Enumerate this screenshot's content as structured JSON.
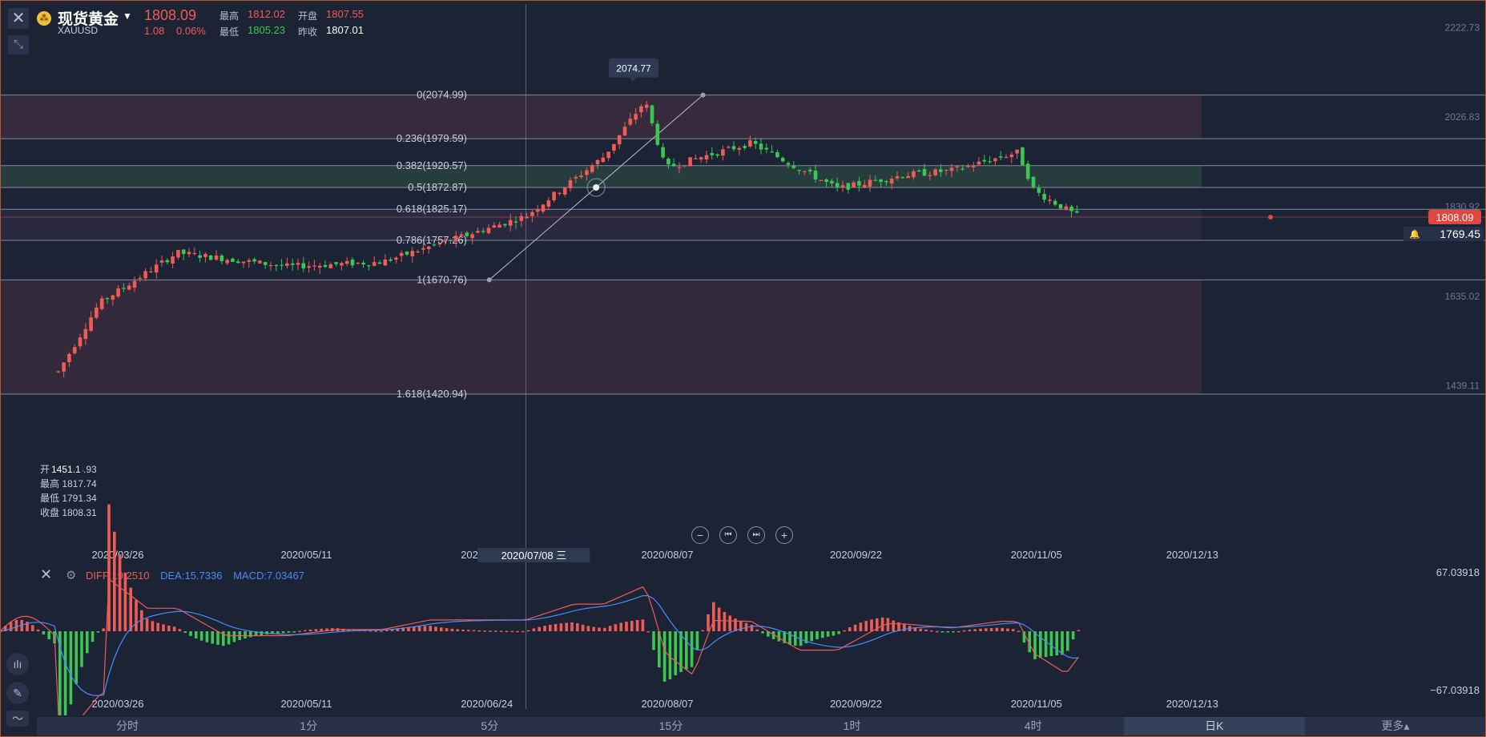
{
  "header": {
    "instrument_name": "现货黄金",
    "instrument_code": "XAUUSD",
    "last_price": "1808.09",
    "change": "1.08",
    "change_pct": "0.06%",
    "high_label": "最高",
    "high_value": "1812.02",
    "open_label": "开盘",
    "open_value": "1807.55",
    "low_label": "最低",
    "low_value": "1805.23",
    "prev_close_label": "昨收",
    "prev_close_value": "1807.01"
  },
  "ohlc_tooltip": {
    "low_marker": "1451.1",
    "open_line": "开盘 1793.93",
    "high_line": "最高 1817.74",
    "low_line": "最低 1791.34",
    "close_line": "收盘 1808.31"
  },
  "price_axis": [
    "2222.73",
    "2026.83",
    "1830.92",
    "1635.02",
    "1439.11"
  ],
  "current_price_tag": "1808.09",
  "alert_price_tag": "1769.45",
  "peak_tooltip": "2074.77",
  "fib_levels": [
    {
      "label": "0(2074.99)",
      "price": 2074.99
    },
    {
      "label": "0.236(1979.59)",
      "price": 1979.59
    },
    {
      "label": "0.382(1920.57)",
      "price": 1920.57
    },
    {
      "label": "0.5(1872.87)",
      "price": 1872.87
    },
    {
      "label": "0.618(1825.17)",
      "price": 1825.17
    },
    {
      "label": "0.786(1757.26)",
      "price": 1757.26
    },
    {
      "label": "1(1670.76)",
      "price": 1670.76
    },
    {
      "label": "1.618(1420.94)",
      "price": 1420.94
    }
  ],
  "date_axis": [
    "2020/03/26",
    "2020/05/11",
    "2020/06/24",
    "2020/08/07",
    "2020/09/22",
    "2020/11/05",
    "2020/12/13"
  ],
  "crosshair_date": "2020/07/08 三",
  "macd": {
    "diff_label": "DIFF:19.2510",
    "dea_label": "DEA:15.7336",
    "macd_label": "MACD:7.03467",
    "axis_top": "67.03918",
    "axis_bottom": "−67.03918",
    "colors": {
      "diff": "#f05b55",
      "dea": "#4a8cf7",
      "macd": "#4a8cf7"
    }
  },
  "period_tabs": [
    "分时",
    "1分",
    "5分",
    "15分",
    "1时",
    "4时",
    "日K",
    "更多▴"
  ],
  "active_tab": "日K",
  "chart_data": {
    "type": "candlestick",
    "x": [
      "2020/03/16",
      "2020/03/26",
      "2020/04/14",
      "2020/05/11",
      "2020/06/03",
      "2020/06/24",
      "2020/07/08",
      "2020/07/27",
      "2020/08/06",
      "2020/08/07",
      "2020/08/11",
      "2020/08/20",
      "2020/09/01",
      "2020/09/22",
      "2020/10/08",
      "2020/10/20",
      "2020/11/05",
      "2020/11/09",
      "2020/11/20"
    ],
    "close": [
      1470,
      1620,
      1730,
      1700,
      1710,
      1770,
      1810,
      1940,
      2062,
      2035,
      1915,
      1940,
      1970,
      1870,
      1900,
      1910,
      1950,
      1865,
      1808
    ],
    "ylim": [
      1400,
      2222.73
    ],
    "colors": {
      "up": "#f05b55",
      "down": "#3cc750"
    }
  }
}
